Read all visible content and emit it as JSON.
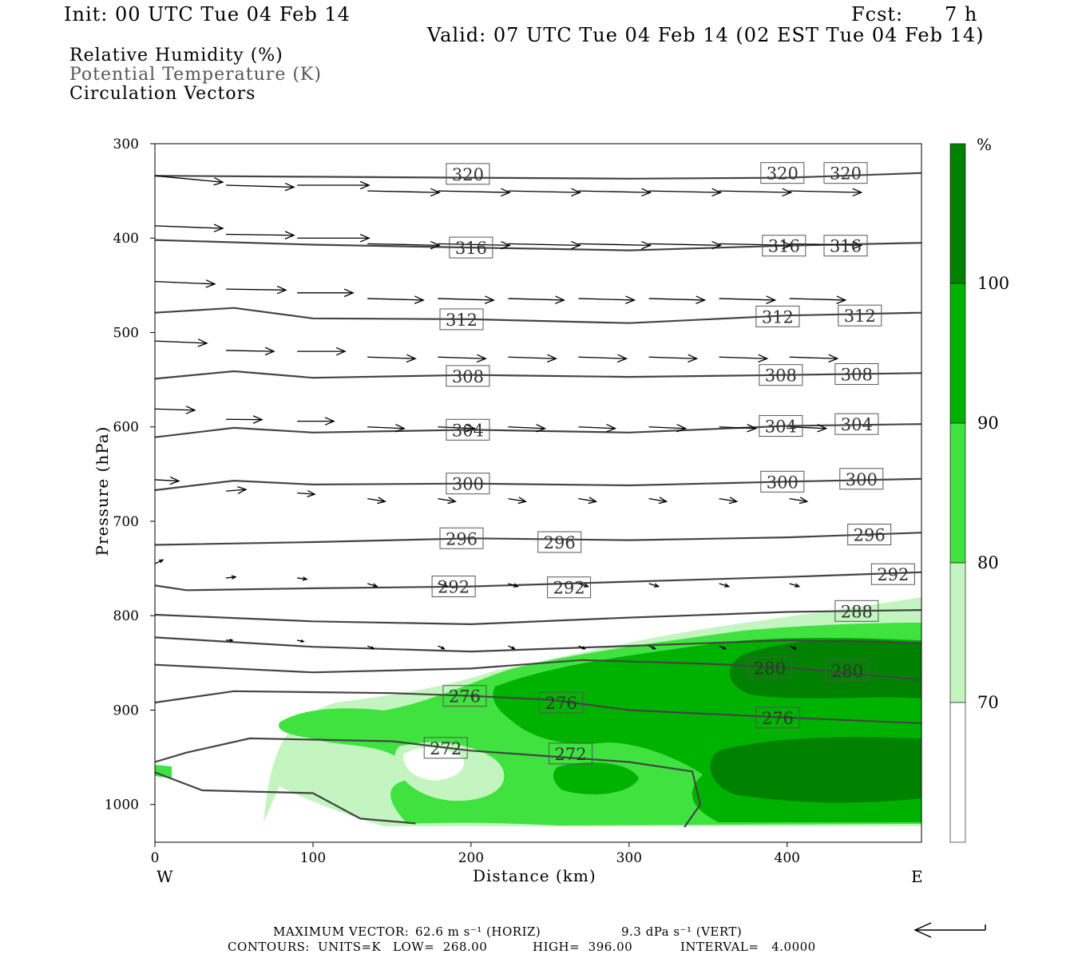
{
  "header": {
    "init": "Init: 00 UTC Tue 04 Feb 14",
    "fcst_label": "Fcst:",
    "fcst_value": "7 h",
    "valid": "Valid: 07 UTC Tue 04 Feb 14 (02 EST Tue 04 Feb 14)"
  },
  "legend": {
    "rh": "Relative Humidity (%)",
    "theta": "Potential Temperature (K)",
    "vectors": "Circulation Vectors"
  },
  "footer": {
    "max_vector_label": "MAXIMUM VECTOR:",
    "max_vector_horiz": "62.6 m s⁻¹ (HORIZ)",
    "max_vector_vert": "9.3 dPa s⁻¹ (VERT)",
    "contours_label": "CONTOURS:",
    "units": "UNITS=K",
    "low": "LOW=  268.00",
    "high": "HIGH=  396.00",
    "interval": "INTERVAL=   4.0000"
  },
  "colors": {
    "rh_70_80": "#c4f4c0",
    "rh_80_90": "#3fe23f",
    "rh_90_100": "#00b200",
    "rh_100": "#008200",
    "theta_line": "#444444"
  },
  "chart_data": {
    "type": "cross-section",
    "xlabel": "Distance (km)",
    "ylabel": "Pressure (hPa)",
    "xlim": [
      0,
      485
    ],
    "ylim": [
      300,
      1040
    ],
    "y_reversed": true,
    "x_ticks": [
      0,
      100,
      200,
      300,
      400
    ],
    "y_ticks": [
      300,
      400,
      500,
      600,
      700,
      800,
      900,
      1000
    ],
    "x_end_labels": {
      "left": "W",
      "right": "E"
    },
    "colorbar": {
      "unit": "%",
      "levels": [
        70,
        80,
        90,
        100
      ],
      "colors": [
        "#ffffff",
        "#c4f4c0",
        "#3fe23f",
        "#00b200",
        "#008200"
      ]
    },
    "theta_contours": [
      {
        "value": 320,
        "points": [
          [
            0,
            334
          ],
          [
            100,
            335
          ],
          [
            200,
            336
          ],
          [
            300,
            337
          ],
          [
            400,
            336
          ],
          [
            485,
            331
          ]
        ],
        "labels": [
          [
            198,
            332
          ],
          [
            397,
            331
          ],
          [
            437,
            331
          ]
        ]
      },
      {
        "value": 316,
        "points": [
          [
            0,
            402
          ],
          [
            100,
            407
          ],
          [
            200,
            410
          ],
          [
            300,
            413
          ],
          [
            400,
            408
          ],
          [
            485,
            405
          ]
        ],
        "labels": [
          [
            200,
            410
          ],
          [
            398,
            408
          ],
          [
            437,
            408
          ]
        ]
      },
      {
        "value": 312,
        "points": [
          [
            0,
            479
          ],
          [
            50,
            474
          ],
          [
            100,
            485
          ],
          [
            200,
            486
          ],
          [
            300,
            490
          ],
          [
            400,
            482
          ],
          [
            485,
            479
          ]
        ],
        "labels": [
          [
            194,
            486
          ],
          [
            394,
            483
          ],
          [
            446,
            482
          ]
        ]
      },
      {
        "value": 308,
        "points": [
          [
            0,
            549
          ],
          [
            50,
            541
          ],
          [
            100,
            548
          ],
          [
            200,
            545
          ],
          [
            300,
            547
          ],
          [
            400,
            545
          ],
          [
            485,
            543
          ]
        ],
        "labels": [
          [
            198,
            546
          ],
          [
            396,
            545
          ],
          [
            444,
            544
          ]
        ]
      },
      {
        "value": 304,
        "points": [
          [
            0,
            611
          ],
          [
            50,
            601
          ],
          [
            100,
            606
          ],
          [
            200,
            603
          ],
          [
            300,
            606
          ],
          [
            400,
            599
          ],
          [
            485,
            597
          ]
        ],
        "labels": [
          [
            198,
            603
          ],
          [
            396,
            599
          ],
          [
            444,
            597
          ]
        ]
      },
      {
        "value": 300,
        "points": [
          [
            0,
            667
          ],
          [
            50,
            657
          ],
          [
            100,
            661
          ],
          [
            200,
            660
          ],
          [
            300,
            662
          ],
          [
            400,
            658
          ],
          [
            485,
            655
          ]
        ],
        "labels": [
          [
            198,
            660
          ],
          [
            397,
            658
          ],
          [
            447,
            655
          ]
        ]
      },
      {
        "value": 296,
        "points": [
          [
            0,
            725
          ],
          [
            100,
            722
          ],
          [
            200,
            718
          ],
          [
            300,
            720
          ],
          [
            400,
            717
          ],
          [
            485,
            712
          ]
        ],
        "labels": [
          [
            194,
            718
          ],
          [
            256,
            722
          ],
          [
            452,
            714
          ]
        ]
      },
      {
        "value": 292,
        "points": [
          [
            0,
            768
          ],
          [
            20,
            773
          ],
          [
            100,
            771
          ],
          [
            200,
            769
          ],
          [
            300,
            764
          ],
          [
            400,
            759
          ],
          [
            485,
            754
          ]
        ],
        "labels": [
          [
            189,
            769
          ],
          [
            262,
            770
          ],
          [
            467,
            756
          ]
        ]
      },
      {
        "value": 288,
        "points": [
          [
            0,
            799
          ],
          [
            100,
            806
          ],
          [
            200,
            809
          ],
          [
            300,
            802
          ],
          [
            400,
            796
          ],
          [
            485,
            794
          ]
        ],
        "labels": [
          [
            444,
            795
          ]
        ]
      },
      {
        "value": 284,
        "points": [
          [
            0,
            823
          ],
          [
            100,
            833
          ],
          [
            200,
            838
          ],
          [
            300,
            832
          ],
          [
            400,
            826
          ],
          [
            485,
            829
          ]
        ],
        "labels": []
      },
      {
        "value": 280,
        "points": [
          [
            0,
            852
          ],
          [
            100,
            860
          ],
          [
            200,
            856
          ],
          [
            270,
            847
          ],
          [
            350,
            851
          ],
          [
            400,
            855
          ],
          [
            485,
            868
          ]
        ],
        "labels": [
          [
            389,
            855
          ],
          [
            438,
            858
          ]
        ]
      },
      {
        "value": 276,
        "points": [
          [
            0,
            892
          ],
          [
            50,
            880
          ],
          [
            150,
            882
          ],
          [
            200,
            885
          ],
          [
            250,
            889
          ],
          [
            300,
            900
          ],
          [
            400,
            908
          ],
          [
            485,
            914
          ]
        ],
        "labels": [
          [
            196,
            885
          ],
          [
            257,
            892
          ],
          [
            394,
            908
          ]
        ]
      },
      {
        "value": 272,
        "points": [
          [
            0,
            955
          ],
          [
            20,
            945
          ],
          [
            60,
            930
          ],
          [
            150,
            933
          ],
          [
            200,
            943
          ],
          [
            300,
            955
          ],
          [
            340,
            965
          ],
          [
            345,
            1000
          ],
          [
            335,
            1024
          ]
        ],
        "labels": [
          [
            184,
            940
          ],
          [
            263,
            946
          ]
        ]
      },
      {
        "value": 268,
        "points": [
          [
            0,
            966
          ],
          [
            30,
            985
          ],
          [
            100,
            988
          ],
          [
            130,
            1015
          ],
          [
            165,
            1020
          ]
        ],
        "labels": []
      }
    ],
    "vectors": [
      {
        "x": 0,
        "p": 334,
        "u": 8.5,
        "w": 2.0
      },
      {
        "x": 45,
        "p": 344,
        "u": 8.5,
        "w": 0.6
      },
      {
        "x": 0,
        "p": 387,
        "u": 8.5,
        "w": 0.8
      },
      {
        "x": 45,
        "p": 396,
        "u": 8.5,
        "w": 0.3
      },
      {
        "x": 0,
        "p": 446,
        "u": 7.5,
        "w": 0.8
      },
      {
        "x": 45,
        "p": 454,
        "u": 7.5,
        "w": 0.3
      },
      {
        "x": 0,
        "p": 509,
        "u": 6.5,
        "w": 0.7
      },
      {
        "x": 45,
        "p": 519,
        "u": 6.0,
        "w": 0.3
      },
      {
        "x": 0,
        "p": 581,
        "u": 5.0,
        "w": 0.4
      },
      {
        "x": 45,
        "p": 592,
        "u": 4.5,
        "w": 0.1
      },
      {
        "x": 0,
        "p": 656,
        "u": 3.0,
        "w": 0.4
      },
      {
        "x": 45,
        "p": 668,
        "u": 2.5,
        "w": -0.5
      },
      {
        "x": 0,
        "p": 745,
        "u": 1.0,
        "w": -1.2
      },
      {
        "x": 45,
        "p": 760,
        "u": 1.2,
        "w": -0.3
      },
      {
        "x": 45,
        "p": 826,
        "u": 0.8,
        "w": 0.0
      }
    ],
    "vector_scale": {
      "max_horiz": "62.6 m s-1",
      "max_vert": "9.3 dPa s-1"
    }
  }
}
